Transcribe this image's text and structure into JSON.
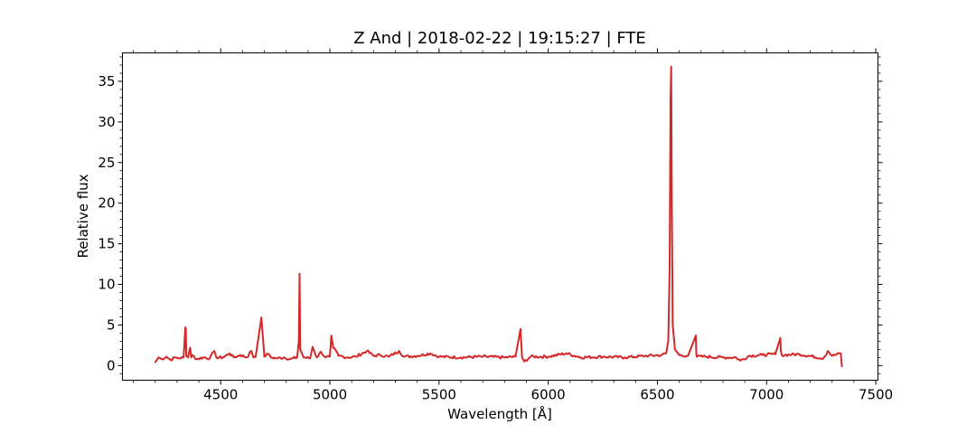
{
  "chart_data": {
    "type": "line",
    "title": "Z And | 2018-02-22 | 19:15:27 | FTE",
    "xlabel": "Wavelength [Å]",
    "ylabel": "Relative flux",
    "xlim": [
      4050,
      7510
    ],
    "ylim": [
      -1.8,
      38.5
    ],
    "xticks": [
      4500,
      5000,
      5500,
      6000,
      6500,
      7000,
      7500
    ],
    "yticks": [
      0,
      5,
      10,
      15,
      20,
      25,
      30,
      35
    ],
    "grid": false,
    "legend": "none",
    "line_color": "#d62728",
    "series": [
      {
        "x": [
          4200,
          4215,
          4230,
          4250,
          4270,
          4290,
          4310,
          4330,
          4338,
          4340,
          4342,
          4350,
          4360,
          4365,
          4370,
          4390,
          4420,
          4450,
          4471,
          4480,
          4510,
          4541,
          4560,
          4590,
          4620,
          4640,
          4650,
          4660,
          4686,
          4700,
          4713,
          4730,
          4760,
          4790,
          4820,
          4850,
          4858,
          4861,
          4864,
          4880,
          4910,
          4921,
          4940,
          4959,
          4980,
          5000,
          5007,
          5015,
          5040,
          5080,
          5120,
          5169,
          5200,
          5230,
          5270,
          5317,
          5340,
          5400,
          5460,
          5500,
          5600,
          5700,
          5800,
          5850,
          5873,
          5876,
          5880,
          5890,
          5920,
          6000,
          6083,
          6150,
          6250,
          6350,
          6450,
          6520,
          6540,
          6550,
          6556,
          6560,
          6563,
          6566,
          6570,
          6580,
          6600,
          6640,
          6676,
          6678,
          6680,
          6720,
          6800,
          6860,
          6880,
          6920,
          6980,
          7040,
          7063,
          7065,
          7070,
          7150,
          7260,
          7281,
          7300,
          7340,
          7345
        ],
        "y": [
          0.4,
          1.0,
          0.8,
          1.1,
          0.7,
          1.0,
          0.9,
          1.0,
          4.7,
          4.5,
          1.2,
          1.0,
          2.2,
          1.0,
          1.3,
          0.8,
          1.0,
          0.9,
          1.8,
          1.0,
          1.0,
          1.5,
          1.0,
          1.3,
          1.0,
          1.8,
          1.0,
          1.1,
          5.9,
          1.1,
          1.5,
          1.0,
          0.9,
          1.0,
          0.8,
          1.0,
          3.0,
          11.3,
          2.0,
          1.0,
          0.9,
          2.3,
          1.0,
          1.7,
          1.0,
          1.1,
          3.7,
          2.2,
          1.2,
          1.0,
          1.1,
          1.8,
          1.2,
          1.3,
          1.1,
          1.8,
          1.1,
          1.2,
          1.5,
          1.1,
          1.0,
          1.1,
          1.0,
          1.1,
          4.5,
          3.0,
          1.0,
          0.5,
          1.1,
          1.1,
          1.5,
          1.0,
          1.1,
          1.0,
          1.2,
          1.3,
          1.5,
          3.0,
          12.0,
          33.0,
          36.8,
          20.0,
          5.0,
          2.0,
          1.3,
          1.2,
          3.7,
          1.5,
          1.1,
          1.1,
          1.0,
          1.0,
          0.6,
          1.2,
          1.3,
          1.4,
          3.4,
          1.8,
          1.3,
          1.4,
          0.9,
          1.8,
          1.2,
          1.5,
          -0.1
        ]
      }
    ]
  }
}
